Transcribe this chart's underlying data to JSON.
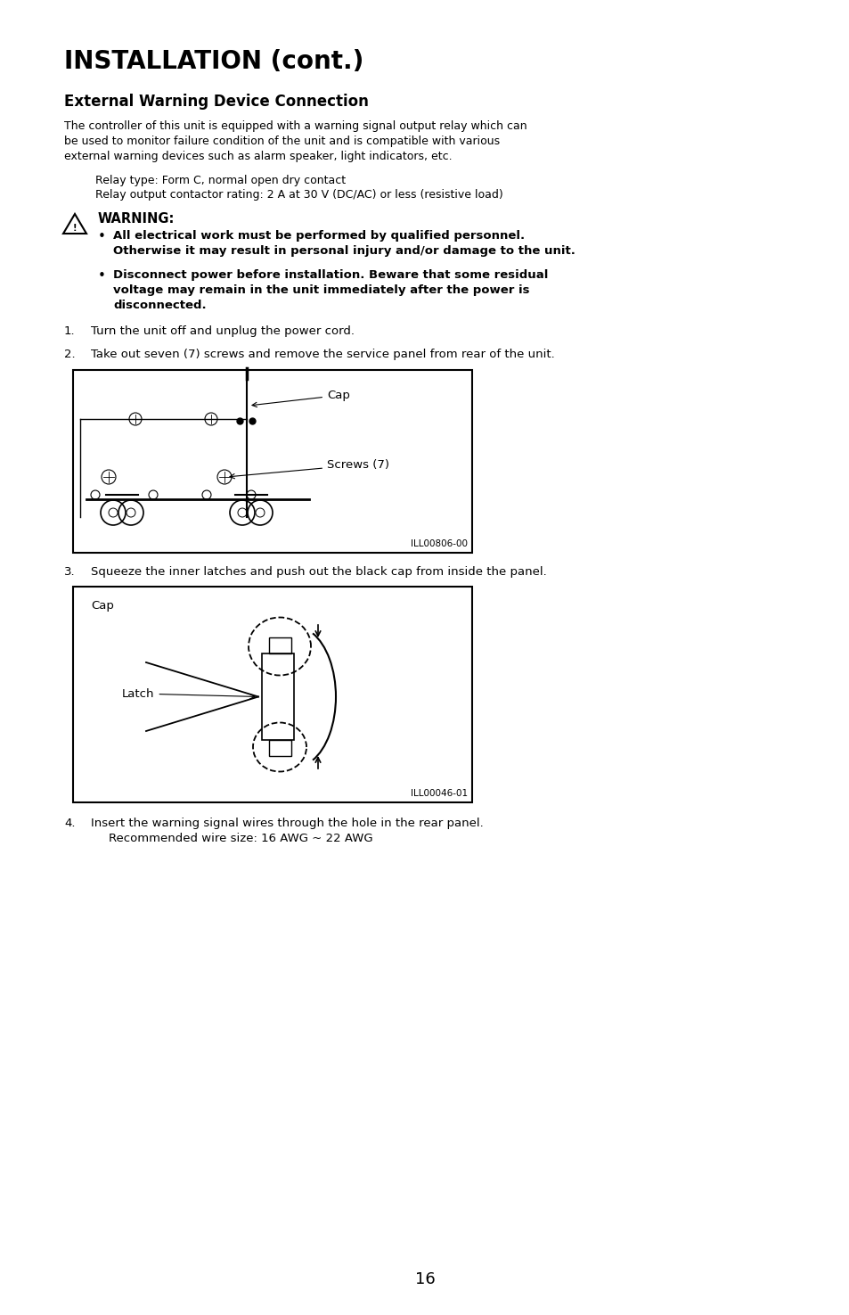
{
  "bg_color": "#ffffff",
  "title": "INSTALLATION (cont.)",
  "subtitle": "External Warning Device Connection",
  "body_text1": "The controller of this unit is equipped with a warning signal output relay which can",
  "body_text2": "be used to monitor failure condition of the unit and is compatible with various",
  "body_text3": "external warning devices such as alarm speaker, light indicators, etc.",
  "relay_line1": "Relay type: Form C, normal open dry contact",
  "relay_line2": "Relay output contactor rating: 2 A at 30 V (DC/AC) or less (resistive load)",
  "warning_title": "WARNING:",
  "warning_bullet1a": "All electrical work must be performed by qualified personnel.",
  "warning_bullet1b": "Otherwise it may result in personal injury and/or damage to the unit.",
  "warning_bullet2a": "Disconnect power before installation. Beware that some residual",
  "warning_bullet2b": "voltage may remain in the unit immediately after the power is",
  "warning_bullet2c": "disconnected.",
  "step1": "Turn the unit off and unplug the power cord.",
  "step2": "Take out seven (7) screws and remove the service panel from rear of the unit.",
  "step2_cap_label": "Cap",
  "step2_screw_label": "Screws (7)",
  "step2_ill": "ILL00806-00",
  "step3": "Squeeze the inner latches and push out the black cap from inside the panel.",
  "step3_cap_label": "Cap",
  "step3_latch_label": "Latch",
  "step3_ill": "ILL00046-01",
  "step4": "Insert the warning signal wires through the hole in the rear panel.",
  "step4_sub": "Recommended wire size: 16 AWG ~ 22 AWG",
  "page_number": "16",
  "lm": 0.075,
  "rm": 0.955,
  "text_color": "#000000",
  "title_fs": 20,
  "subtitle_fs": 12,
  "body_fs": 9,
  "warn_fs": 9.5,
  "step_fs": 9.5
}
